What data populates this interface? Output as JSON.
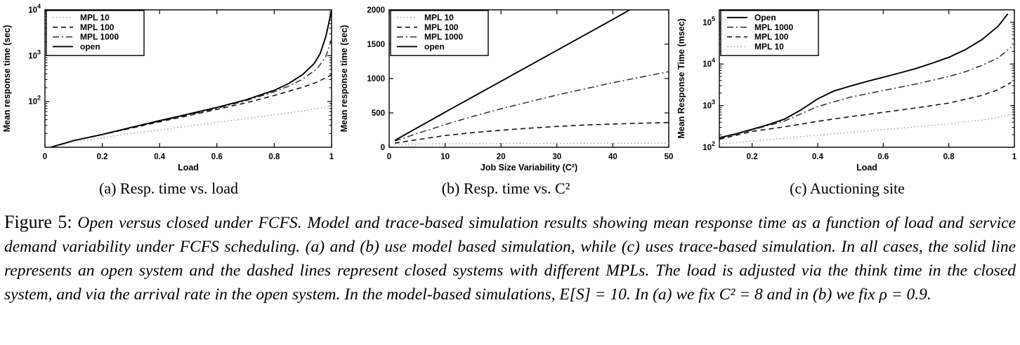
{
  "figure": {
    "subcaptions": [
      "(a) Resp. time vs. load",
      "(b) Resp. time vs. C²",
      "(c) Auctioning site"
    ],
    "caption": {
      "prefix": "Figure 5:",
      "body": "Open versus closed under FCFS. Model and trace-based simulation results showing mean response time as a function of load and service demand variability under FCFS scheduling. (a) and (b) use model based simulation, while (c) uses trace-based simulation. In all cases, the solid line represents an open system and the dashed lines represent closed systems with different MPLs. The load is adjusted via the think time in the closed system, and via the arrival rate in the open system. In the model-based simulations, E[S] = 10. In (a) we fix C² = 8 and in (b) we fix ρ = 0.9."
    }
  },
  "colors": {
    "line_black": "#000000",
    "line_dark": "#2e2e2e",
    "line_gray_dotted": "#a6a6a6",
    "axis": "#000000",
    "background": "#ffffff"
  },
  "chart_data": [
    {
      "type": "line",
      "name": "resp-time-vs-load",
      "xlabel": "Load",
      "ylabel": "Mean response time (sec)",
      "xscale": "linear",
      "yscale": "log",
      "xlim": [
        0,
        1
      ],
      "ylim": [
        10,
        10000
      ],
      "grid": false,
      "legend_position": "top-left",
      "xticks": [
        {
          "v": 0,
          "label": "0"
        },
        {
          "v": 0.2,
          "label": "0.2"
        },
        {
          "v": 0.4,
          "label": "0.4"
        },
        {
          "v": 0.6,
          "label": "0.6"
        },
        {
          "v": 0.8,
          "label": "0.8"
        },
        {
          "v": 1,
          "label": "1"
        }
      ],
      "yticks": [
        {
          "v": 100,
          "label": "10",
          "sup": "2"
        },
        {
          "v": 1000,
          "label": "10",
          "sup": "3"
        },
        {
          "v": 10000,
          "label": "10",
          "sup": "4"
        }
      ],
      "series": [
        {
          "name": "MPL 10",
          "style": "dotted",
          "color": "#a6a6a6",
          "points": [
            [
              0.02,
              10
            ],
            [
              0.1,
              13
            ],
            [
              0.2,
              16
            ],
            [
              0.3,
              20
            ],
            [
              0.4,
              24
            ],
            [
              0.5,
              29
            ],
            [
              0.6,
              35
            ],
            [
              0.7,
              42
            ],
            [
              0.8,
              51
            ],
            [
              0.9,
              62
            ],
            [
              1,
              78
            ]
          ]
        },
        {
          "name": "MPL 100",
          "style": "dashed",
          "color": "#141414",
          "points": [
            [
              0.02,
              10
            ],
            [
              0.1,
              14
            ],
            [
              0.2,
              19
            ],
            [
              0.3,
              26
            ],
            [
              0.4,
              36
            ],
            [
              0.5,
              49
            ],
            [
              0.6,
              67
            ],
            [
              0.7,
              93
            ],
            [
              0.8,
              135
            ],
            [
              0.9,
              205
            ],
            [
              0.95,
              265
            ],
            [
              1,
              380
            ]
          ]
        },
        {
          "name": "MPL 1000",
          "style": "dashdot",
          "color": "#2e2e2e",
          "points": [
            [
              0.02,
              10
            ],
            [
              0.1,
              14
            ],
            [
              0.2,
              19
            ],
            [
              0.3,
              27
            ],
            [
              0.4,
              37
            ],
            [
              0.5,
              51
            ],
            [
              0.6,
              71
            ],
            [
              0.7,
              103
            ],
            [
              0.8,
              163
            ],
            [
              0.85,
              215
            ],
            [
              0.9,
              310
            ],
            [
              0.95,
              520
            ],
            [
              0.98,
              950
            ],
            [
              1,
              2300
            ]
          ]
        },
        {
          "name": "open",
          "style": "solid",
          "color": "#000000",
          "points": [
            [
              0.02,
              10
            ],
            [
              0.1,
              14
            ],
            [
              0.2,
              19
            ],
            [
              0.3,
              27
            ],
            [
              0.4,
              38
            ],
            [
              0.5,
              53
            ],
            [
              0.6,
              74
            ],
            [
              0.7,
              108
            ],
            [
              0.8,
              175
            ],
            [
              0.85,
              245
            ],
            [
              0.9,
              390
            ],
            [
              0.94,
              680
            ],
            [
              0.96,
              1100
            ],
            [
              0.98,
              2600
            ],
            [
              0.99,
              5000
            ],
            [
              1,
              10000
            ]
          ]
        }
      ]
    },
    {
      "type": "line",
      "name": "resp-time-vs-c2",
      "xlabel": "Job Size Variability (C²)",
      "ylabel": "Mean response time (sec)",
      "xscale": "linear",
      "yscale": "linear",
      "xlim": [
        0,
        50
      ],
      "ylim": [
        0,
        2000
      ],
      "grid": false,
      "legend_position": "top-left",
      "xticks": [
        {
          "v": 0,
          "label": "0"
        },
        {
          "v": 10,
          "label": "10"
        },
        {
          "v": 20,
          "label": "20"
        },
        {
          "v": 30,
          "label": "30"
        },
        {
          "v": 40,
          "label": "40"
        },
        {
          "v": 50,
          "label": "50"
        }
      ],
      "yticks": [
        {
          "v": 0,
          "label": "0"
        },
        {
          "v": 500,
          "label": "500"
        },
        {
          "v": 1000,
          "label": "1000"
        },
        {
          "v": 1500,
          "label": "1500"
        },
        {
          "v": 2000,
          "label": "2000"
        }
      ],
      "series": [
        {
          "name": "MPL 10",
          "style": "dotted",
          "color": "#a6a6a6",
          "points": [
            [
              1,
              45
            ],
            [
              10,
              50
            ],
            [
              20,
              53
            ],
            [
              30,
              55
            ],
            [
              40,
              58
            ],
            [
              50,
              60
            ]
          ]
        },
        {
          "name": "MPL 100",
          "style": "dashed",
          "color": "#141414",
          "points": [
            [
              1,
              60
            ],
            [
              5,
              110
            ],
            [
              10,
              170
            ],
            [
              15,
              213
            ],
            [
              20,
              248
            ],
            [
              25,
              278
            ],
            [
              30,
              303
            ],
            [
              35,
              323
            ],
            [
              40,
              338
            ],
            [
              45,
              350
            ],
            [
              50,
              360
            ]
          ]
        },
        {
          "name": "MPL 1000",
          "style": "dashdot",
          "color": "#2e2e2e",
          "points": [
            [
              1,
              90
            ],
            [
              5,
              200
            ],
            [
              10,
              330
            ],
            [
              15,
              450
            ],
            [
              20,
              560
            ],
            [
              25,
              660
            ],
            [
              30,
              760
            ],
            [
              35,
              850
            ],
            [
              40,
              940
            ],
            [
              45,
              1020
            ],
            [
              50,
              1100
            ]
          ]
        },
        {
          "name": "open",
          "style": "solid",
          "color": "#000000",
          "points": [
            [
              1,
              100
            ],
            [
              10,
              510
            ],
            [
              20,
              960
            ],
            [
              30,
              1410
            ],
            [
              40,
              1860
            ],
            [
              45,
              2090
            ]
          ]
        }
      ]
    },
    {
      "type": "line",
      "name": "auctioning-site",
      "xlabel": "Load",
      "ylabel": "Mean Response Time (msec)",
      "xscale": "linear",
      "yscale": "log",
      "xlim": [
        0.1,
        1
      ],
      "ylim": [
        100,
        200000
      ],
      "grid": false,
      "legend_position": "top-left",
      "xticks": [
        {
          "v": 0.2,
          "label": "0.2"
        },
        {
          "v": 0.4,
          "label": "0.4"
        },
        {
          "v": 0.6,
          "label": "0.6"
        },
        {
          "v": 0.8,
          "label": "0.8"
        },
        {
          "v": 1,
          "label": "1"
        }
      ],
      "yticks": [
        {
          "v": 100,
          "label": "10",
          "sup": "2"
        },
        {
          "v": 1000,
          "label": "10",
          "sup": "3"
        },
        {
          "v": 10000,
          "label": "10",
          "sup": "4"
        },
        {
          "v": 100000,
          "label": "10",
          "sup": "5"
        }
      ],
      "series": [
        {
          "name": "Open",
          "style": "solid",
          "color": "#000000",
          "points": [
            [
              0.1,
              170
            ],
            [
              0.15,
              210
            ],
            [
              0.2,
              270
            ],
            [
              0.25,
              350
            ],
            [
              0.3,
              480
            ],
            [
              0.35,
              800
            ],
            [
              0.4,
              1450
            ],
            [
              0.45,
              2250
            ],
            [
              0.5,
              2950
            ],
            [
              0.55,
              3800
            ],
            [
              0.6,
              4800
            ],
            [
              0.65,
              6100
            ],
            [
              0.7,
              7800
            ],
            [
              0.75,
              10500
            ],
            [
              0.8,
              14500
            ],
            [
              0.85,
              22000
            ],
            [
              0.9,
              38000
            ],
            [
              0.95,
              80000
            ],
            [
              0.98,
              160000
            ]
          ]
        },
        {
          "name": "MPL 1000",
          "style": "dashdot",
          "color": "#2e2e2e",
          "points": [
            [
              0.1,
              160
            ],
            [
              0.2,
              260
            ],
            [
              0.3,
              430
            ],
            [
              0.35,
              640
            ],
            [
              0.4,
              950
            ],
            [
              0.5,
              1600
            ],
            [
              0.6,
              2300
            ],
            [
              0.7,
              3300
            ],
            [
              0.8,
              5000
            ],
            [
              0.85,
              6500
            ],
            [
              0.9,
              9200
            ],
            [
              0.95,
              14000
            ],
            [
              0.99,
              25000
            ]
          ]
        },
        {
          "name": "MPL 100",
          "style": "dashed",
          "color": "#141414",
          "points": [
            [
              0.1,
              155
            ],
            [
              0.2,
              240
            ],
            [
              0.3,
              310
            ],
            [
              0.4,
              420
            ],
            [
              0.5,
              545
            ],
            [
              0.6,
              690
            ],
            [
              0.7,
              880
            ],
            [
              0.8,
              1150
            ],
            [
              0.9,
              1750
            ],
            [
              0.95,
              2400
            ],
            [
              0.99,
              3600
            ]
          ]
        },
        {
          "name": "MPL 10",
          "style": "dotted",
          "color": "#a6a6a6",
          "points": [
            [
              0.1,
              120
            ],
            [
              0.2,
              140
            ],
            [
              0.3,
              165
            ],
            [
              0.4,
              195
            ],
            [
              0.5,
              228
            ],
            [
              0.6,
              265
            ],
            [
              0.7,
              310
            ],
            [
              0.8,
              365
            ],
            [
              0.9,
              450
            ],
            [
              0.95,
              520
            ],
            [
              0.99,
              620
            ]
          ]
        }
      ]
    }
  ]
}
